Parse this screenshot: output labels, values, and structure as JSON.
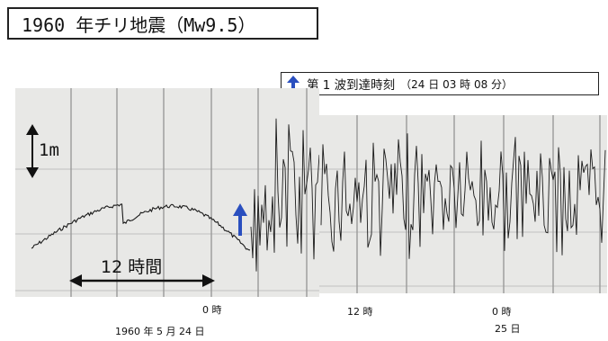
{
  "title": "1960 年チリ地震（Mw9.5）",
  "legend": {
    "icon": "up-arrow-icon",
    "text": "第 1 波到達時刻",
    "detail": "（24 日 03 時 08 分）",
    "color": "#2a4fbf"
  },
  "scale_label": "1m",
  "duration_label": "12 時間",
  "time_labels": {
    "zero_a": "0 時",
    "date_a": "1960 年 5 月 24 日",
    "twelve": "12 時",
    "zero_b": "0 時",
    "date_b": "25 日"
  },
  "colors": {
    "paper": "#e8e8e6",
    "trace": "#1a1a1a",
    "arrow": "#2a4fbf"
  }
}
